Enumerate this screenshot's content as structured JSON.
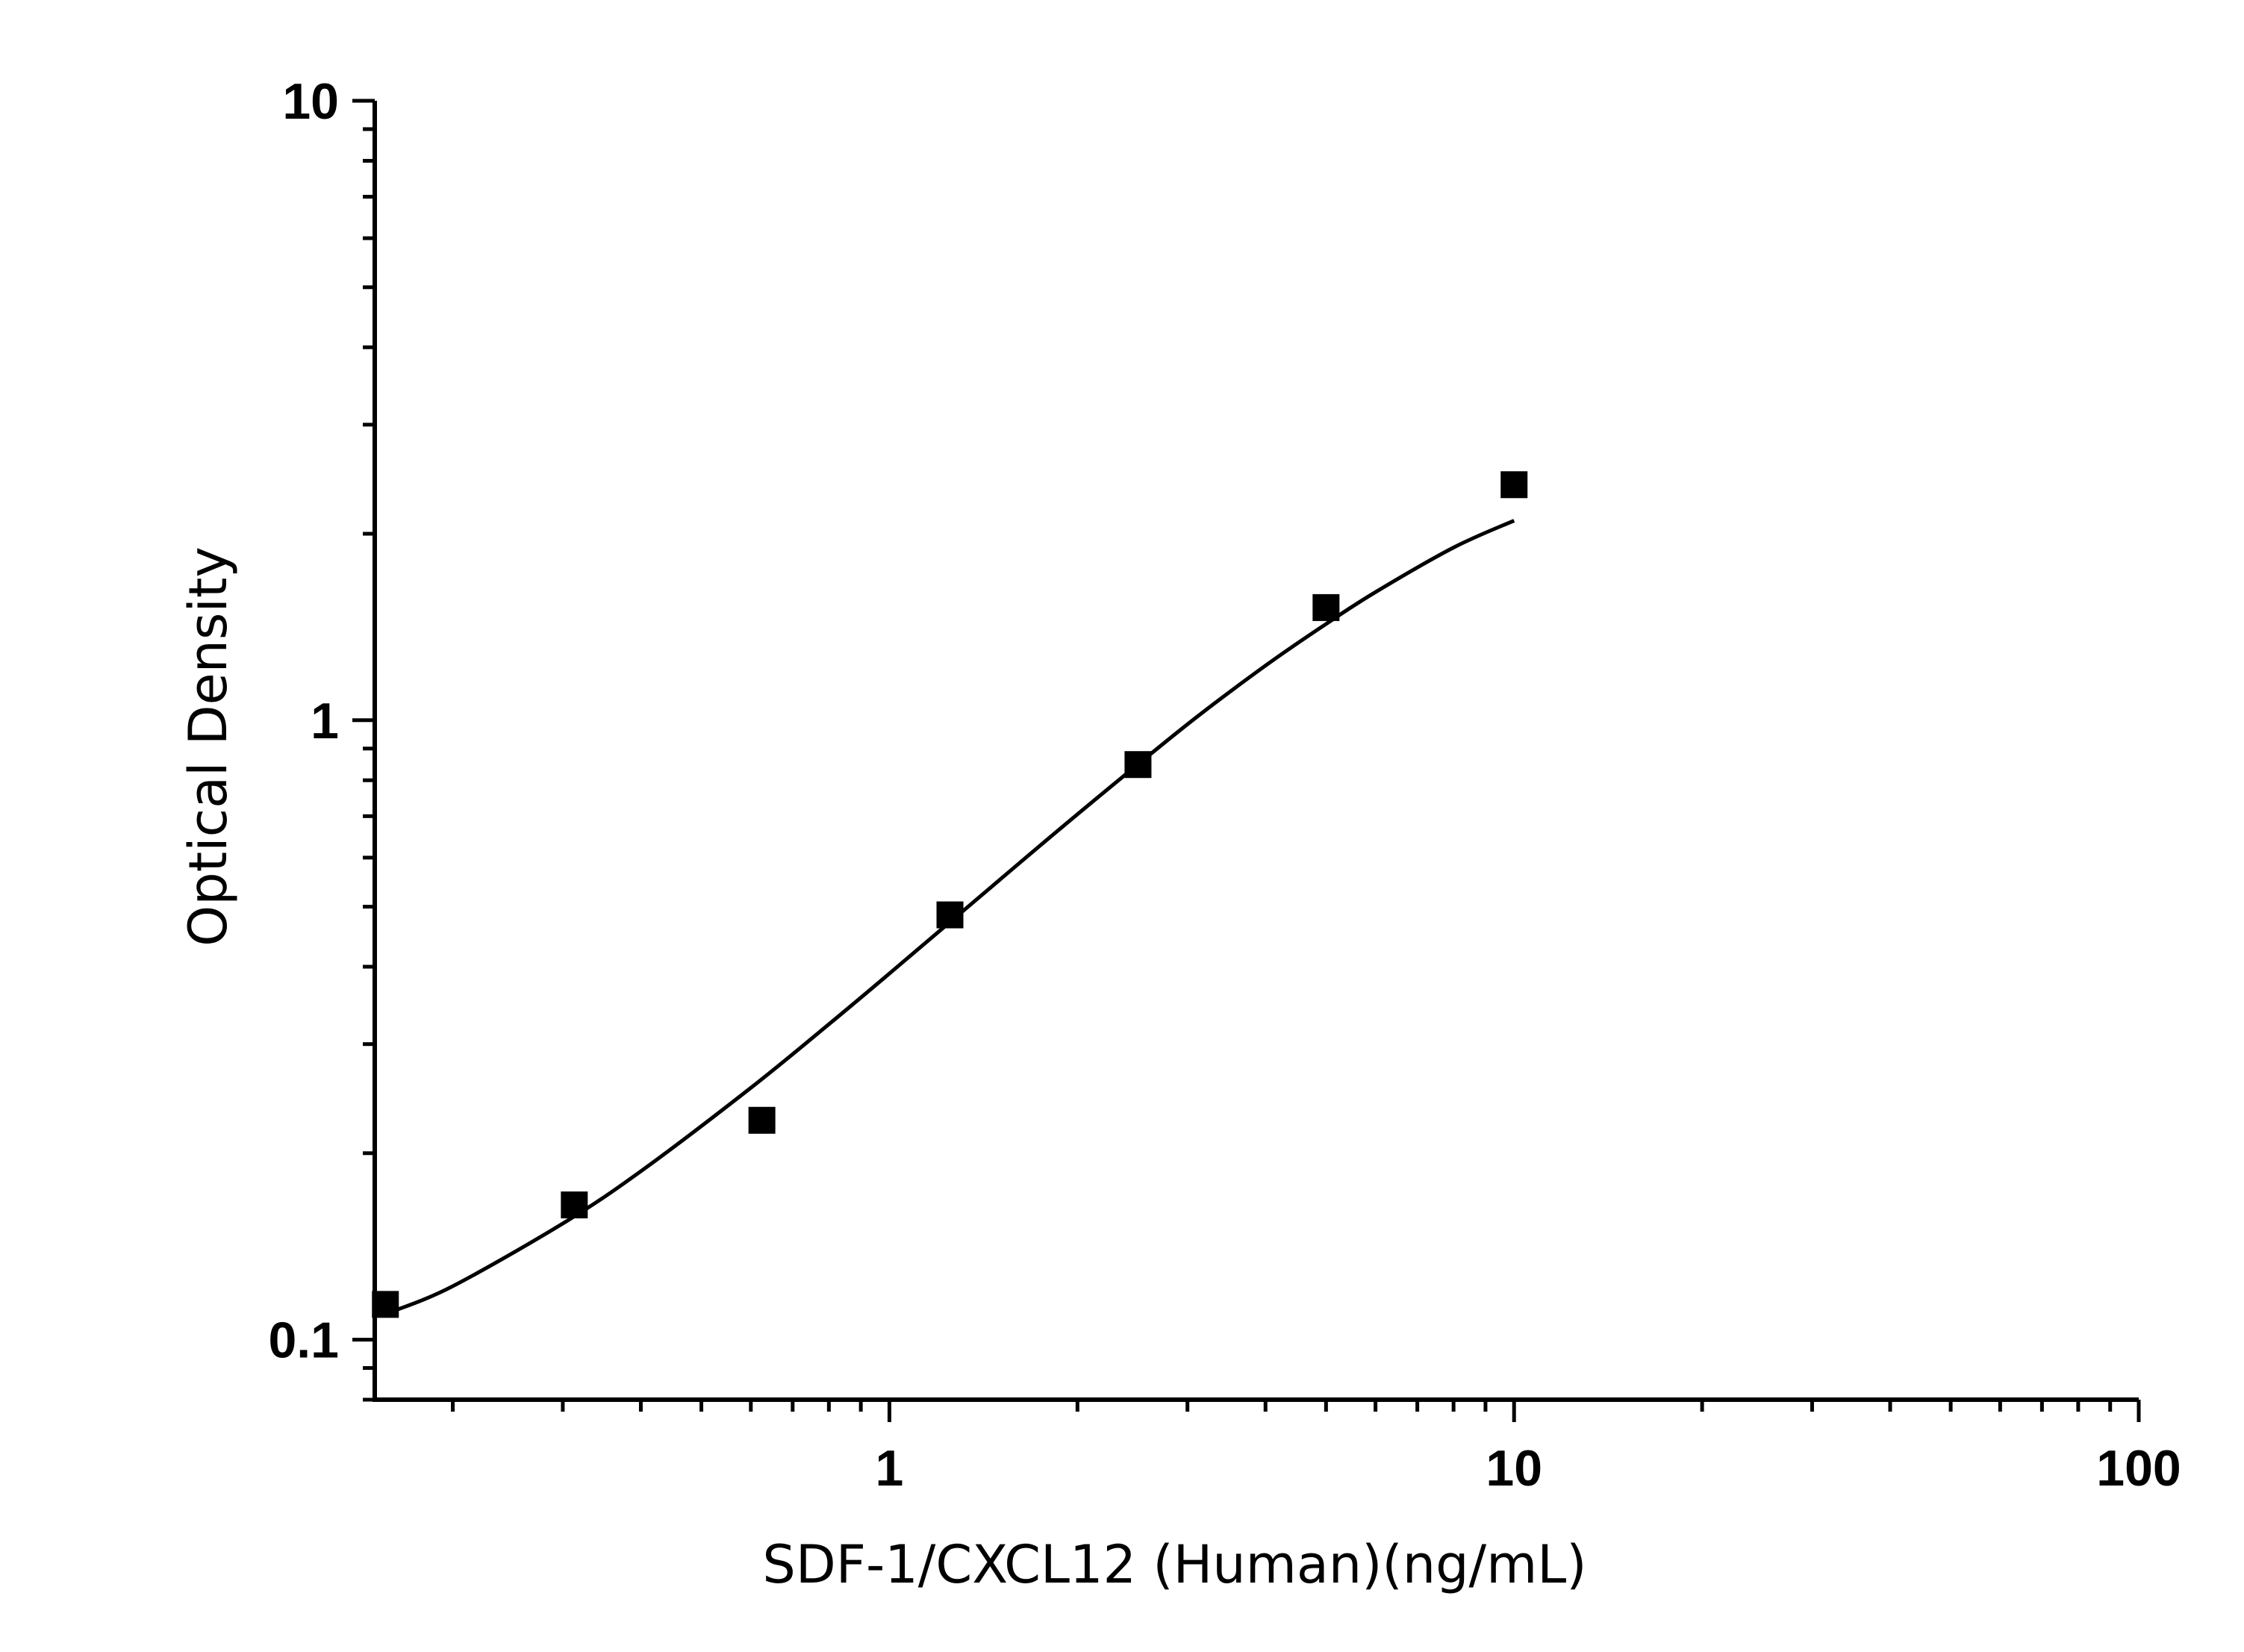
{
  "chart_data": {
    "type": "scatter",
    "title": "",
    "xlabel": "SDF-1/CXCL12 (Human)(ng/mL)",
    "ylabel": "Optical Density",
    "xscale": "log",
    "yscale": "log",
    "xlim": [
      0.15,
      100
    ],
    "ylim": [
      0.08,
      10
    ],
    "x_major_ticks": [
      1,
      10,
      100
    ],
    "x_tick_labels": [
      "1",
      "10",
      "100"
    ],
    "y_major_ticks": [
      0.1,
      1,
      10
    ],
    "y_tick_labels": [
      "0.1",
      "1",
      "10"
    ],
    "grid": false,
    "legend": "none",
    "marker": "square",
    "color": "#000000",
    "series": [
      {
        "x": [
          0.156,
          0.313,
          0.625,
          1.25,
          2.5,
          5,
          10
        ],
        "y": [
          0.114,
          0.165,
          0.226,
          0.485,
          0.848,
          1.52,
          2.4
        ]
      }
    ],
    "fit_curve": {
      "type": "four-parameter logistic",
      "x": [
        0.16,
        0.2,
        0.3,
        0.4,
        0.6,
        0.8,
        1,
        1.5,
        2,
        3,
        4,
        5,
        6,
        8,
        10
      ],
      "y": [
        0.111,
        0.122,
        0.154,
        0.187,
        0.255,
        0.323,
        0.39,
        0.552,
        0.705,
        0.985,
        1.225,
        1.43,
        1.61,
        1.9,
        2.1
      ]
    }
  }
}
